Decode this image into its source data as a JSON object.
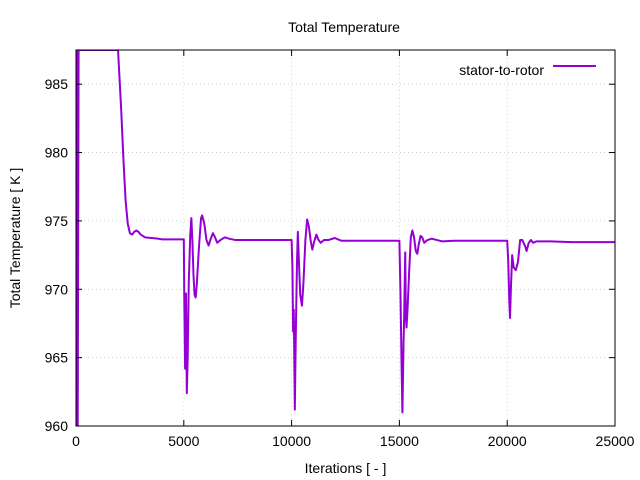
{
  "chart_data": {
    "type": "line",
    "title": "Total Temperature",
    "xlabel": "Iterations [ - ]",
    "ylabel": "Total Temperature [ K ]",
    "xlim": [
      0,
      25000
    ],
    "ylim": [
      960,
      987.5
    ],
    "x_ticks": [
      0,
      5000,
      10000,
      15000,
      20000,
      25000
    ],
    "x_tick_labels": [
      "0",
      "5000",
      "10000",
      "15000",
      "20000",
      "25000"
    ],
    "y_ticks": [
      960,
      965,
      970,
      975,
      980,
      985
    ],
    "y_tick_labels": [
      "960",
      "965",
      "970",
      "975",
      "980",
      "985"
    ],
    "grid": true,
    "legend_position": "top-right",
    "series": [
      {
        "name": "stator-to-rotor",
        "color": "#9400d3",
        "points": [
          [
            0,
            960
          ],
          [
            20,
            975
          ],
          [
            40,
            987.5
          ],
          [
            60,
            970
          ],
          [
            80,
            960
          ],
          [
            100,
            973
          ],
          [
            120,
            987.5
          ],
          [
            1950,
            987.5
          ],
          [
            2000,
            986
          ],
          [
            2100,
            983
          ],
          [
            2200,
            979.5
          ],
          [
            2300,
            976.5
          ],
          [
            2400,
            974.8
          ],
          [
            2500,
            974.1
          ],
          [
            2600,
            974.0
          ],
          [
            2700,
            974.2
          ],
          [
            2800,
            974.3
          ],
          [
            2900,
            974.2
          ],
          [
            3000,
            974.0
          ],
          [
            3200,
            973.8
          ],
          [
            3500,
            973.75
          ],
          [
            3800,
            973.7
          ],
          [
            4000,
            973.65
          ],
          [
            4500,
            973.65
          ],
          [
            5000,
            973.65
          ],
          [
            5020,
            969.7
          ],
          [
            5060,
            964.2
          ],
          [
            5100,
            969.7
          ],
          [
            5140,
            962.4
          ],
          [
            5180,
            965.0
          ],
          [
            5230,
            970.5
          ],
          [
            5300,
            974.0
          ],
          [
            5350,
            975.2
          ],
          [
            5400,
            973.5
          ],
          [
            5450,
            971.0
          ],
          [
            5500,
            969.6
          ],
          [
            5550,
            969.4
          ],
          [
            5600,
            970.3
          ],
          [
            5700,
            973.0
          ],
          [
            5800,
            975.2
          ],
          [
            5850,
            975.4
          ],
          [
            5950,
            974.8
          ],
          [
            6050,
            973.6
          ],
          [
            6150,
            973.2
          ],
          [
            6250,
            973.7
          ],
          [
            6350,
            974.1
          ],
          [
            6450,
            973.8
          ],
          [
            6550,
            973.4
          ],
          [
            6700,
            973.6
          ],
          [
            6900,
            973.8
          ],
          [
            7100,
            973.7
          ],
          [
            7400,
            973.6
          ],
          [
            8000,
            973.6
          ],
          [
            9000,
            973.6
          ],
          [
            10000,
            973.6
          ],
          [
            10040,
            971.5
          ],
          [
            10070,
            966.9
          ],
          [
            10100,
            968.5
          ],
          [
            10150,
            961.2
          ],
          [
            10190,
            966.2
          ],
          [
            10250,
            972.0
          ],
          [
            10290,
            974.2
          ],
          [
            10340,
            972.0
          ],
          [
            10400,
            969.6
          ],
          [
            10480,
            968.8
          ],
          [
            10550,
            970.5
          ],
          [
            10640,
            973.6
          ],
          [
            10720,
            975.1
          ],
          [
            10800,
            974.6
          ],
          [
            10880,
            973.6
          ],
          [
            10960,
            972.9
          ],
          [
            11050,
            973.5
          ],
          [
            11150,
            974.0
          ],
          [
            11250,
            973.6
          ],
          [
            11350,
            973.4
          ],
          [
            11500,
            973.6
          ],
          [
            11700,
            973.6
          ],
          [
            12000,
            973.75
          ],
          [
            12300,
            973.55
          ],
          [
            12700,
            973.55
          ],
          [
            13500,
            973.55
          ],
          [
            14500,
            973.55
          ],
          [
            15000,
            973.55
          ],
          [
            15050,
            969.7
          ],
          [
            15100,
            964.5
          ],
          [
            15140,
            961.0
          ],
          [
            15190,
            966.0
          ],
          [
            15220,
            967.9
          ],
          [
            15270,
            972.7
          ],
          [
            15300,
            968.0
          ],
          [
            15330,
            967.2
          ],
          [
            15380,
            968.6
          ],
          [
            15450,
            971.2
          ],
          [
            15530,
            973.8
          ],
          [
            15600,
            974.3
          ],
          [
            15680,
            973.8
          ],
          [
            15760,
            972.8
          ],
          [
            15830,
            972.6
          ],
          [
            15900,
            973.3
          ],
          [
            15980,
            973.9
          ],
          [
            16060,
            973.8
          ],
          [
            16150,
            973.4
          ],
          [
            16300,
            973.6
          ],
          [
            16500,
            973.7
          ],
          [
            17000,
            973.5
          ],
          [
            17500,
            973.55
          ],
          [
            18500,
            973.55
          ],
          [
            19500,
            973.55
          ],
          [
            20000,
            973.55
          ],
          [
            20050,
            972.0
          ],
          [
            20100,
            969.0
          ],
          [
            20130,
            967.9
          ],
          [
            20170,
            970.0
          ],
          [
            20230,
            972.5
          ],
          [
            20300,
            971.6
          ],
          [
            20400,
            971.4
          ],
          [
            20500,
            972.0
          ],
          [
            20600,
            973.6
          ],
          [
            20700,
            973.6
          ],
          [
            20820,
            973.2
          ],
          [
            20900,
            972.8
          ],
          [
            21000,
            973.4
          ],
          [
            21100,
            973.6
          ],
          [
            21200,
            973.4
          ],
          [
            21350,
            973.5
          ],
          [
            21500,
            973.5
          ],
          [
            22000,
            973.5
          ],
          [
            23000,
            973.45
          ],
          [
            24000,
            973.45
          ],
          [
            25000,
            973.45
          ]
        ]
      }
    ]
  }
}
